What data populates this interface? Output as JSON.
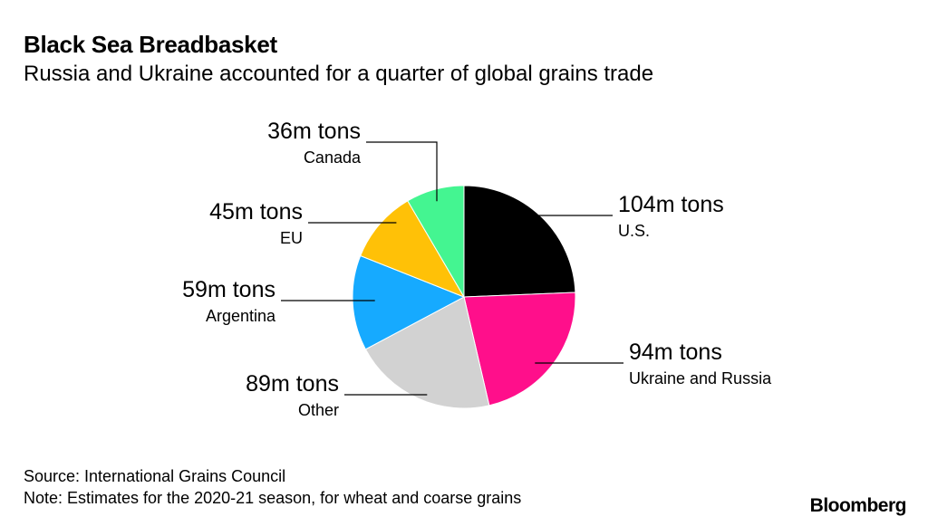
{
  "title": "Black Sea Breadbasket",
  "subtitle": "Russia and Ukraine accounted for a quarter of global grains trade",
  "source": "Source: International Grains Council",
  "note": "Note: Estimates for the 2020-21 season, for wheat and coarse grains",
  "brand": "Bloomberg",
  "chart_data": {
    "type": "pie",
    "unit": "m tons",
    "slices": [
      {
        "name": "U.S.",
        "value": 104,
        "label": "104m tons",
        "color": "#000000"
      },
      {
        "name": "Ukraine and Russia",
        "value": 94,
        "label": "94m tons",
        "color": "#ff0f8b"
      },
      {
        "name": "Other",
        "value": 89,
        "label": "89m tons",
        "color": "#d2d2d2"
      },
      {
        "name": "Argentina",
        "value": 59,
        "label": "59m tons",
        "color": "#16aaff"
      },
      {
        "name": "EU",
        "value": 45,
        "label": "45m tons",
        "color": "#ffc107"
      },
      {
        "name": "Canada",
        "value": 36,
        "label": "36m tons",
        "color": "#44f591"
      }
    ],
    "start_angle": "12 o'clock",
    "direction": "clockwise",
    "legend": "none",
    "labels": "outside with leader lines"
  }
}
